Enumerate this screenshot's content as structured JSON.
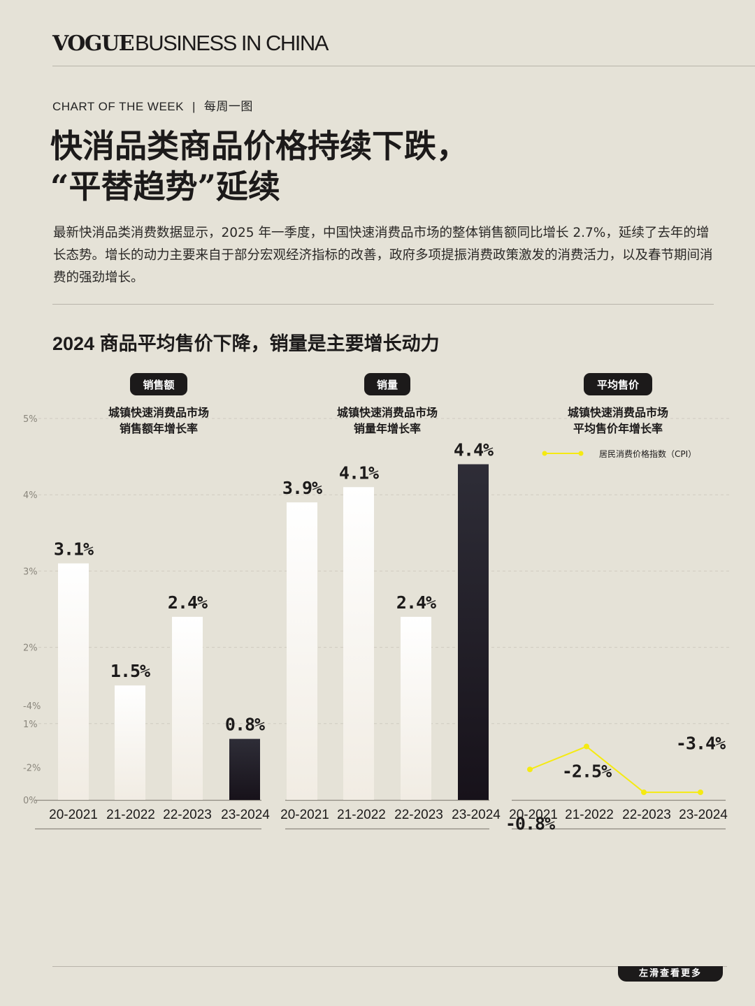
{
  "brand": {
    "logo": "VOGUE",
    "name": "BUSINESS IN CHINA"
  },
  "kicker": {
    "en": "CHART OF THE WEEK",
    "separator": "|",
    "zh": "每周一图"
  },
  "headline": {
    "line1": "快消品类商品价格持续下跌，",
    "line2": "“平替趋势”延续"
  },
  "intro": "最新快消品类消费数据显示，2025 年一季度，中国快速消费品市场的整体销售额同比增长 2.7%，延续了去年的增长态势。增长的动力主要来自于部分宏观经济指标的改善，政府多项提振消费政策激发的消费活力，以及春节期间消费的强劲增长。",
  "subhead": "2024 商品平均售价下降，销量是主要增长动力",
  "footer": {
    "swipe_label": "左滑查看更多"
  },
  "colors": {
    "background": "#e5e2d7",
    "dark": "#1c1a1a",
    "yellow": "#f2ec6a",
    "cpi_line": "#f5ea12"
  },
  "chart_data": [
    {
      "type": "bar",
      "tag": "销售额",
      "title": [
        "城镇快速消费品市场",
        "销售额年增长率"
      ],
      "categories": [
        "20-2021",
        "21-2022",
        "22-2023",
        "23-2024"
      ],
      "values": [
        3.1,
        1.5,
        2.4,
        0.8
      ],
      "value_labels": [
        "3.1%",
        "1.5%",
        "2.4%",
        "0.8%"
      ],
      "highlight_index": 3,
      "y_ticks": [
        "5%",
        "4%",
        "3%",
        "2%",
        "1%",
        "0%",
        "-2%",
        "-4%"
      ],
      "ylim": [
        -4,
        5
      ]
    },
    {
      "type": "bar",
      "tag": "销量",
      "title": [
        "城镇快速消费品市场",
        "销量年增长率"
      ],
      "categories": [
        "20-2021",
        "21-2022",
        "22-2023",
        "23-2024"
      ],
      "values": [
        3.9,
        4.1,
        2.4,
        4.4
      ],
      "value_labels": [
        "3.9%",
        "4.1%",
        "2.4%",
        "4.4%"
      ],
      "highlight_index": 3
    },
    {
      "type": "bar",
      "tag": "平均售价",
      "title": [
        "城镇快速消费品市场",
        "平均售价年增长率"
      ],
      "categories": [
        "20-2021",
        "21-2022",
        "22-2023",
        "23-2024"
      ],
      "values": [
        -0.8,
        -2.5,
        0,
        -3.4
      ],
      "value_labels": [
        "-0.8%",
        "-2.5%",
        "",
        "-3.4%"
      ],
      "highlight_index": 3,
      "line_series": {
        "name": "居民消费价格指数（CPI）",
        "values": [
          0.4,
          0.7,
          0.1,
          0.1
        ]
      }
    }
  ]
}
